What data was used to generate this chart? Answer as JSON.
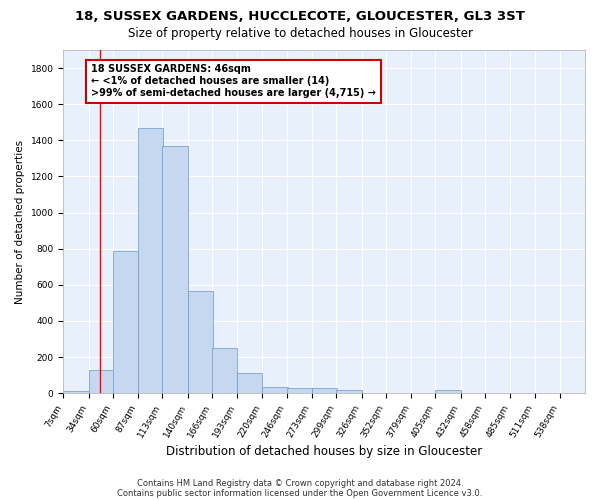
{
  "title": "18, SUSSEX GARDENS, HUCCLECOTE, GLOUCESTER, GL3 3ST",
  "subtitle": "Size of property relative to detached houses in Gloucester",
  "xlabel": "Distribution of detached houses by size in Gloucester",
  "ylabel": "Number of detached properties",
  "bar_color": "#c5d8f0",
  "bar_edge_color": "#6699cc",
  "background_color": "#e8f0fb",
  "grid_color": "#ffffff",
  "annotation_box_color": "#cc0000",
  "annotation_line1": "18 SUSSEX GARDENS: 46sqm",
  "annotation_line2": "← <1% of detached houses are smaller (14)",
  "annotation_line3": ">99% of semi-detached houses are larger (4,715) →",
  "redline_x": 46,
  "categories": [
    "7sqm",
    "34sqm",
    "60sqm",
    "87sqm",
    "113sqm",
    "140sqm",
    "166sqm",
    "193sqm",
    "220sqm",
    "246sqm",
    "273sqm",
    "299sqm",
    "326sqm",
    "352sqm",
    "379sqm",
    "405sqm",
    "432sqm",
    "458sqm",
    "485sqm",
    "511sqm",
    "538sqm"
  ],
  "bin_edges": [
    7,
    34,
    60,
    87,
    113,
    140,
    166,
    193,
    220,
    246,
    273,
    299,
    326,
    352,
    379,
    405,
    432,
    458,
    485,
    511,
    538
  ],
  "values": [
    14,
    130,
    790,
    1470,
    1370,
    565,
    250,
    110,
    35,
    30,
    30,
    18,
    0,
    0,
    0,
    18,
    0,
    0,
    0,
    0,
    0
  ],
  "ylim": [
    0,
    1900
  ],
  "yticks": [
    0,
    200,
    400,
    600,
    800,
    1000,
    1200,
    1400,
    1600,
    1800
  ],
  "footer1": "Contains HM Land Registry data © Crown copyright and database right 2024.",
  "footer2": "Contains public sector information licensed under the Open Government Licence v3.0.",
  "title_fontsize": 9.5,
  "subtitle_fontsize": 8.5,
  "xlabel_fontsize": 8.5,
  "ylabel_fontsize": 7.5,
  "tick_fontsize": 6.5,
  "annotation_fontsize": 7,
  "footer_fontsize": 6
}
